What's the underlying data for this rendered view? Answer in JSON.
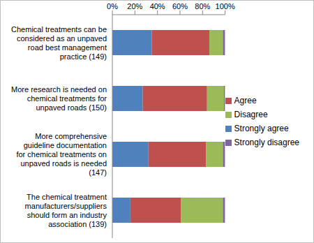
{
  "chart_data": {
    "type": "bar",
    "orientation": "horizontal",
    "stacked": true,
    "categories": [
      "Chemical treatments can be considered as an unpaved road best management practice (149)",
      "More research is needed on chemical treatments for unpaved roads (150)",
      "More comprehensive guideline documentation for chemical treatments on unpaved roads is needed (147)",
      "The chemical treatment manufacturers/suppliers should form an industry association (139)"
    ],
    "series": [
      {
        "name": "Strongly agree",
        "color": "#4F81BD",
        "values": [
          35,
          27,
          32,
          16
        ]
      },
      {
        "name": "Agree",
        "color": "#C0504D",
        "values": [
          51,
          57,
          51,
          45
        ]
      },
      {
        "name": "Disagree",
        "color": "#9BBB59",
        "values": [
          12,
          15,
          15,
          37
        ]
      },
      {
        "name": "Strongly disagree",
        "color": "#8064A2",
        "values": [
          2,
          1,
          2,
          2
        ]
      }
    ],
    "xlim": [
      0,
      100
    ],
    "xticks": [
      {
        "value": 0,
        "label": "0%"
      },
      {
        "value": 20,
        "label": "20%"
      },
      {
        "value": 40,
        "label": "40%"
      },
      {
        "value": 60,
        "label": "60%"
      },
      {
        "value": 80,
        "label": "80%"
      },
      {
        "value": 100,
        "label": "100%"
      }
    ],
    "grid": false,
    "legend": "right"
  }
}
